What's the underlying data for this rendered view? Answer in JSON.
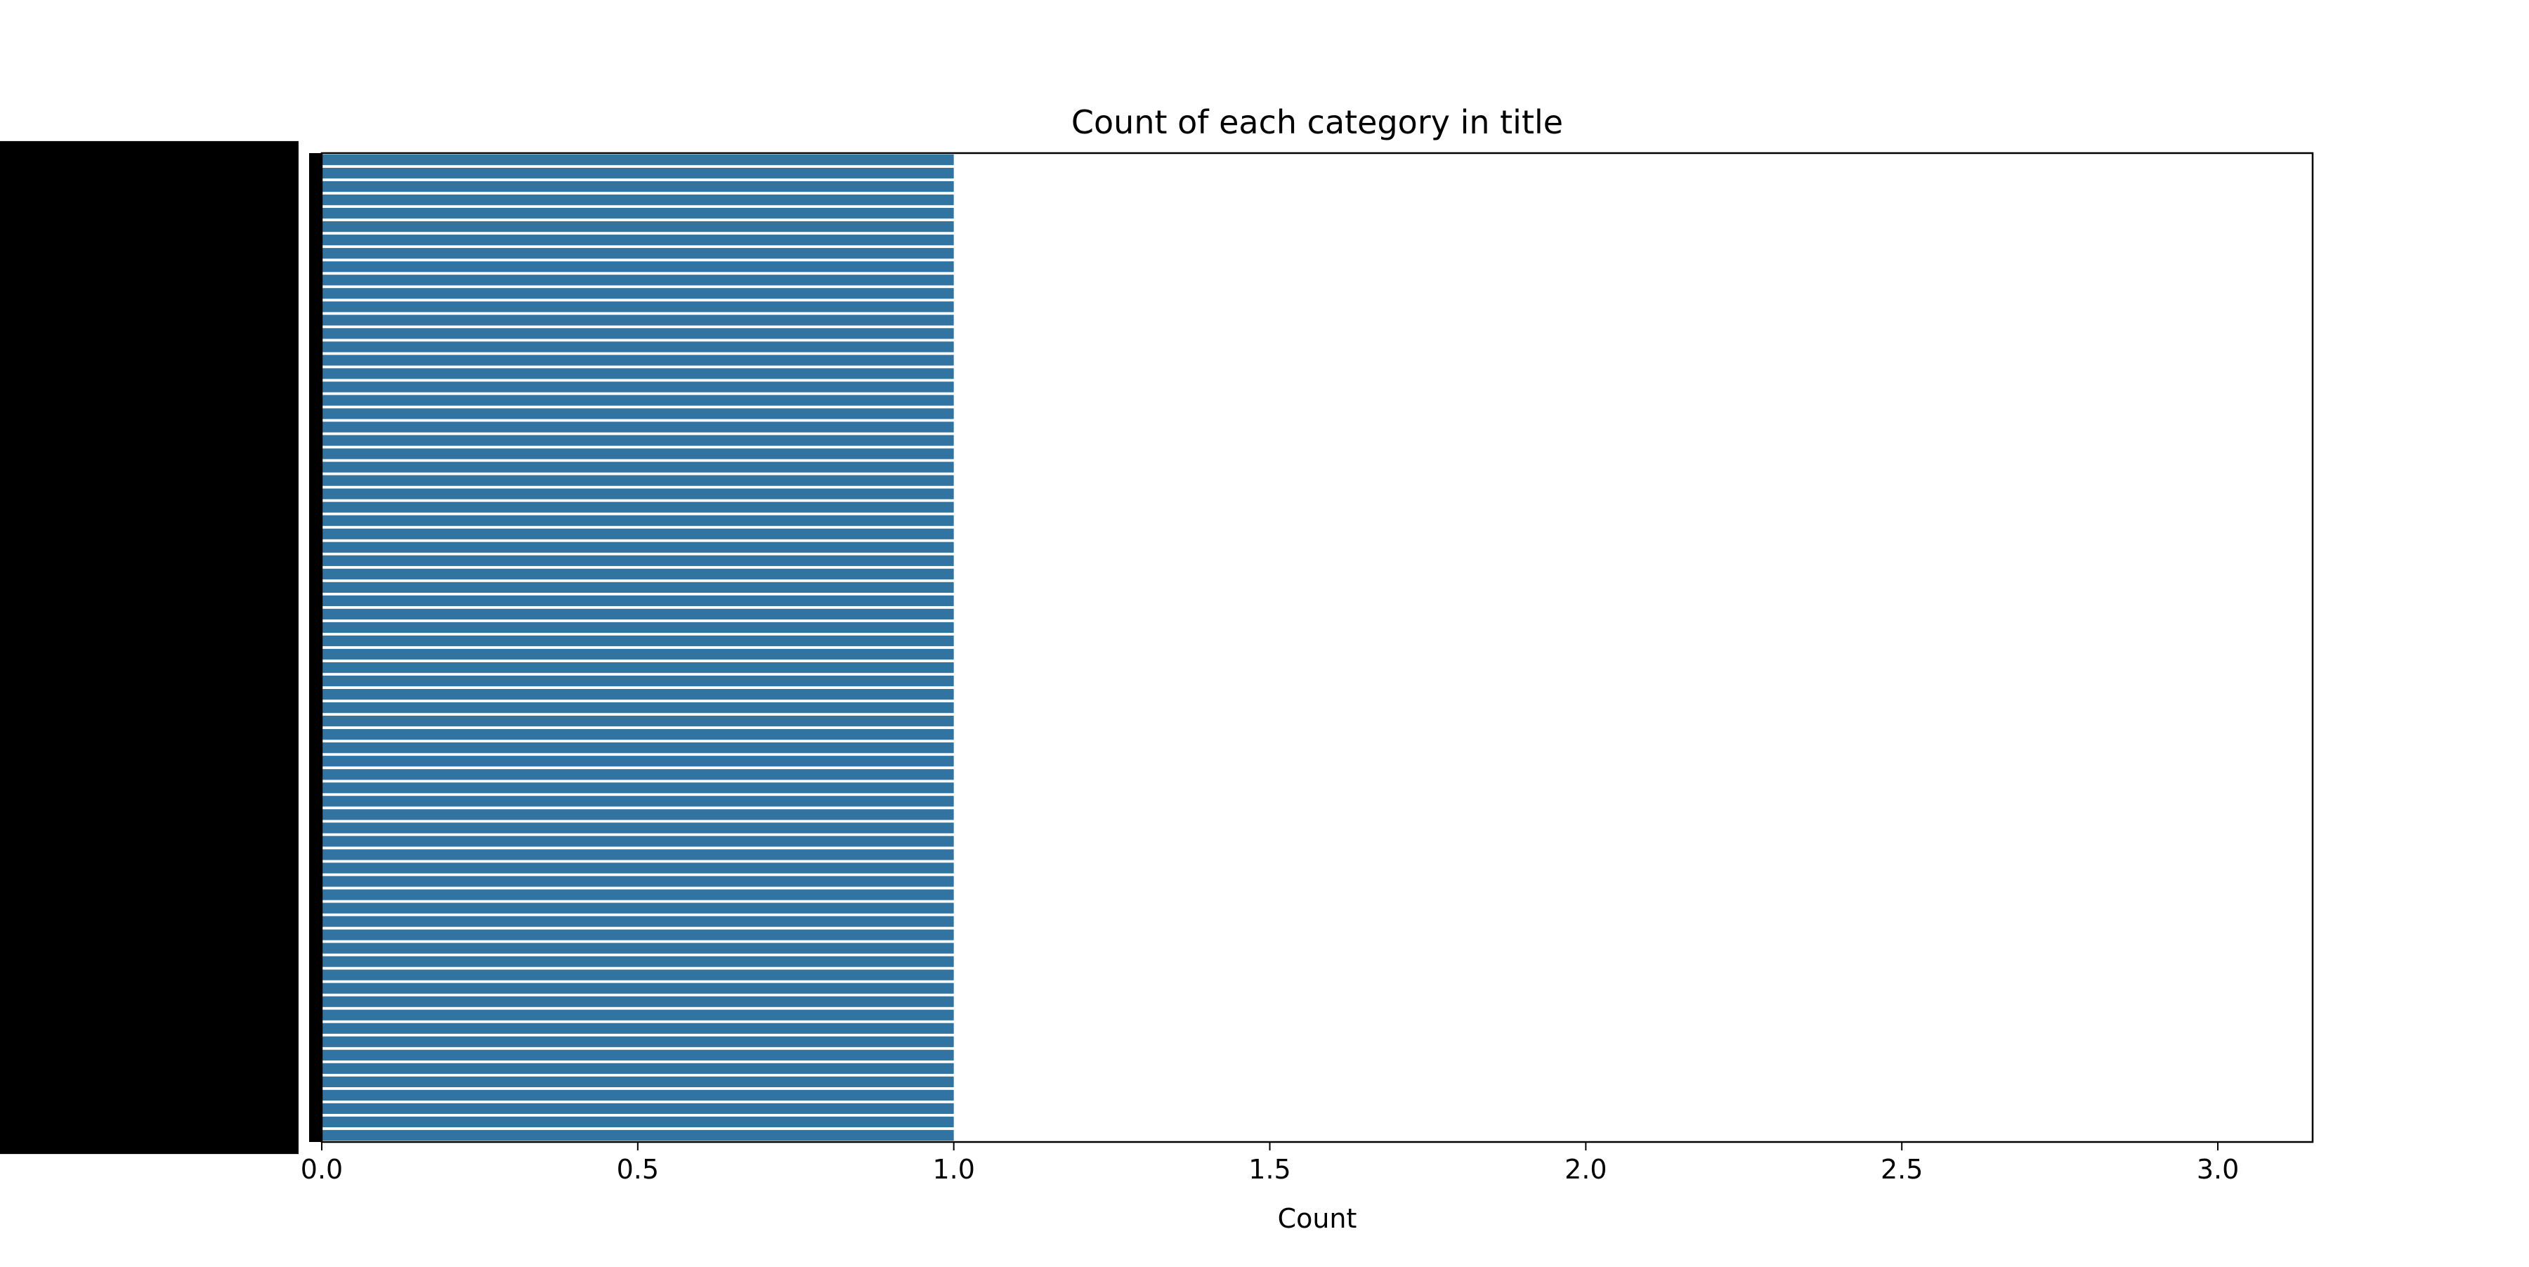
{
  "chart_data": {
    "type": "bar",
    "orientation": "horizontal",
    "title": "Count of each category in title",
    "xlabel": "Count",
    "ylabel": "",
    "xlim": [
      0,
      3.15
    ],
    "xticks": [
      "0.0",
      "0.5",
      "1.0",
      "1.5",
      "2.0",
      "2.5",
      "3.0"
    ],
    "xtick_values": [
      0,
      0.5,
      1.0,
      1.5,
      2.0,
      2.5,
      3.0
    ],
    "category_count": 74,
    "value": 1,
    "bar_color": "#3274a1",
    "grid": false,
    "category_labels_legible": false
  }
}
